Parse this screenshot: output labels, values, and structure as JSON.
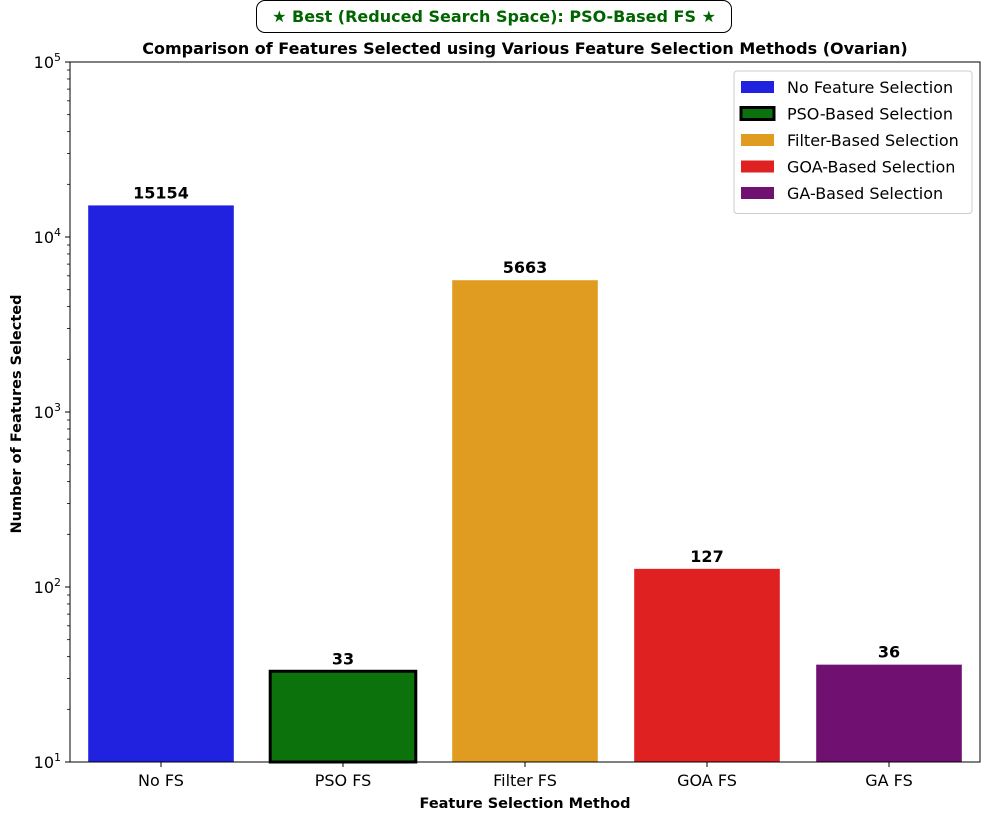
{
  "banner": {
    "text": "★ Best (Reduced Search Space): PSO-Based FS ★",
    "color": "#006400"
  },
  "chart_data": {
    "type": "bar",
    "title": "Comparison of Features Selected using Various Feature Selection Methods (Ovarian)",
    "xlabel": "Feature Selection Method",
    "ylabel": "Number of Features Selected",
    "yscale": "log",
    "ylim": [
      10,
      100000
    ],
    "yticks": [
      {
        "value": 10,
        "base": "10",
        "exp": "1"
      },
      {
        "value": 100,
        "base": "10",
        "exp": "2"
      },
      {
        "value": 1000,
        "base": "10",
        "exp": "3"
      },
      {
        "value": 10000,
        "base": "10",
        "exp": "4"
      },
      {
        "value": 100000,
        "base": "10",
        "exp": "5"
      }
    ],
    "categories": [
      "No FS",
      "PSO FS",
      "Filter FS",
      "GOA FS",
      "GA FS"
    ],
    "values": [
      15154,
      33,
      5663,
      127,
      36
    ],
    "data_labels": [
      "15154",
      "33",
      "5663",
      "127",
      "36"
    ],
    "colors": [
      "#2121e0",
      "#0c720c",
      "#e09c21",
      "#e02121",
      "#701070"
    ],
    "highlight": "PSO FS",
    "legend": {
      "position": "top-right",
      "entries": [
        {
          "label": "No Feature Selection",
          "color": "#2121e0"
        },
        {
          "label": "PSO-Based Selection",
          "color": "#0c720c",
          "outlined": true
        },
        {
          "label": "Filter-Based Selection",
          "color": "#e09c21"
        },
        {
          "label": "GOA-Based Selection",
          "color": "#e02121"
        },
        {
          "label": "GA-Based Selection",
          "color": "#701070"
        }
      ]
    },
    "grid": false
  }
}
